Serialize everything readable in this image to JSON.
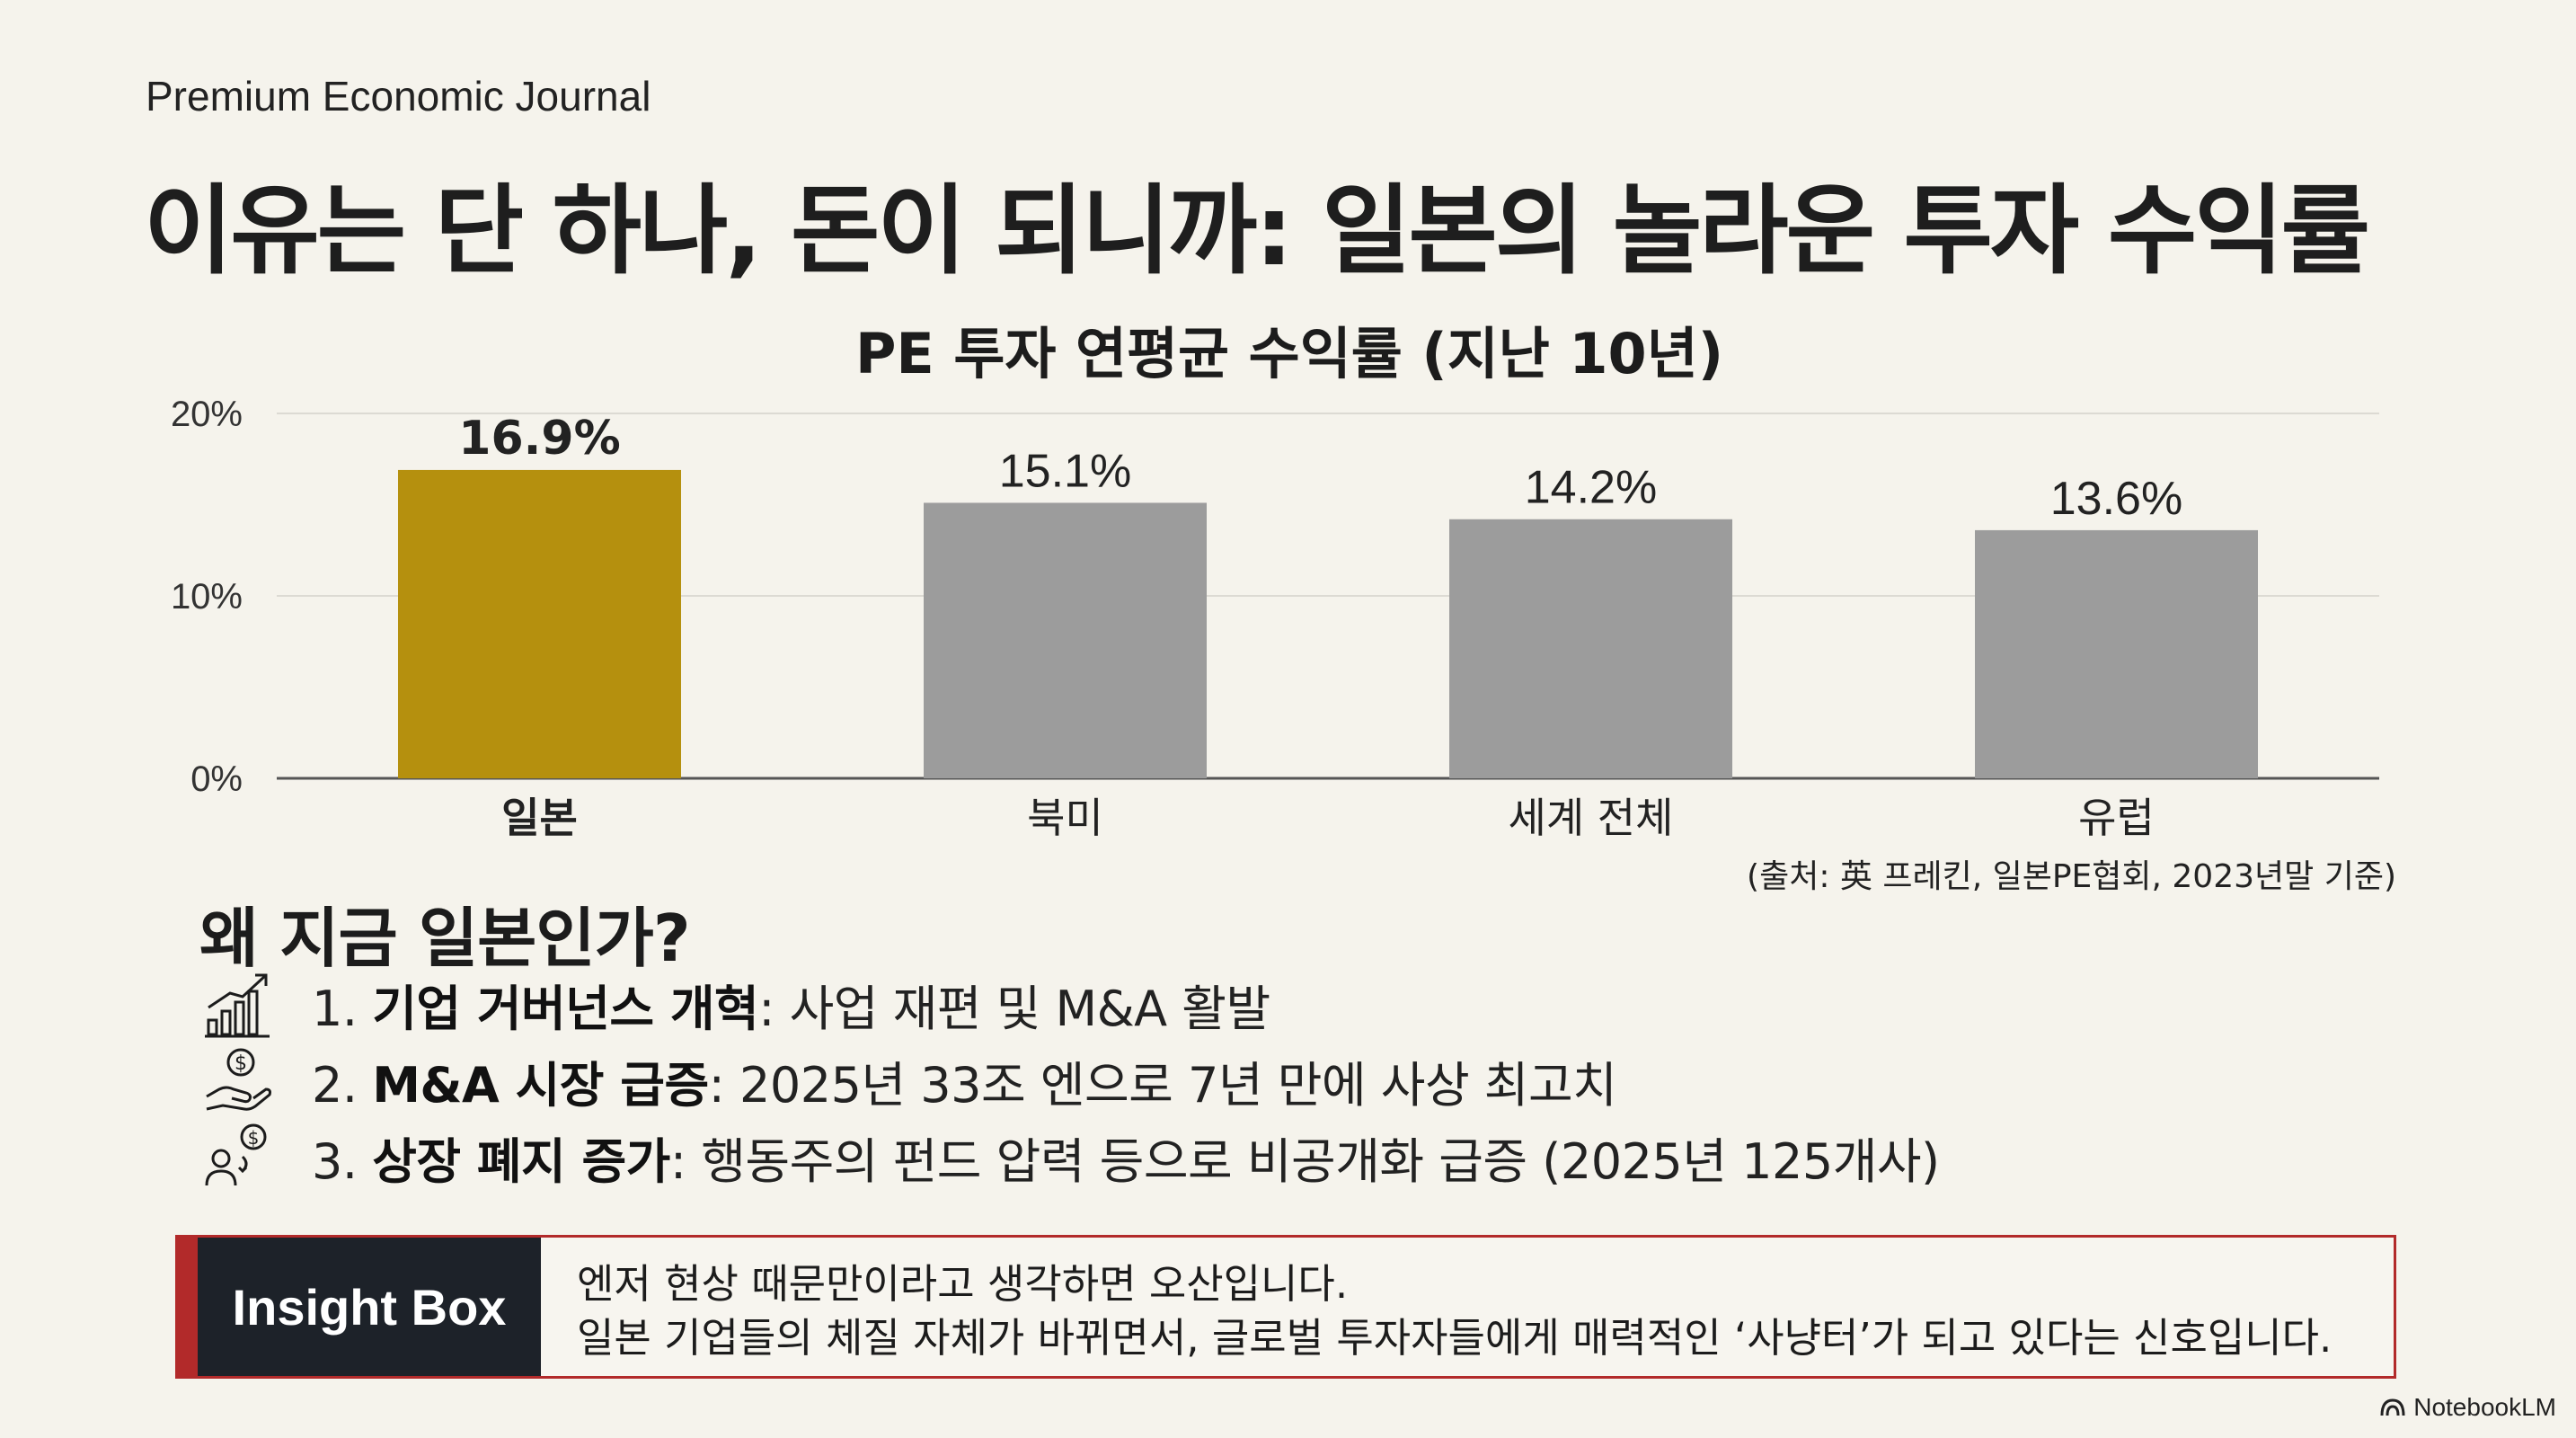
{
  "header": {
    "journal": "Premium Economic Journal",
    "headline": "이유는 단 하나, 돈이 되니까: 일본의 놀라운 투자 수익률"
  },
  "chart_data": {
    "type": "bar",
    "title": "PE 투자 연평균 수익률 (지난 10년)",
    "categories": [
      "일본",
      "북미",
      "세계 전체",
      "유럽"
    ],
    "values": [
      16.9,
      15.1,
      14.2,
      13.6
    ],
    "data_labels": [
      "16.9%",
      "15.1%",
      "14.2%",
      "13.6%"
    ],
    "highlight_index": 0,
    "colors": {
      "highlight": "#b5900e",
      "default": "#9c9c9c",
      "grid": "#dcdad3",
      "axis": "#555555"
    },
    "ylim": [
      0,
      20
    ],
    "yticks": [
      0,
      10,
      20
    ],
    "ytick_labels": [
      "0%",
      "10%",
      "20%"
    ],
    "grid": true,
    "xlabel": "",
    "ylabel": ""
  },
  "source_note": "(출처: 英 프레킨, 일본PE협회, 2023년말 기준)",
  "why": {
    "title": "왜 지금 일본인가?",
    "items": [
      {
        "icon": "rising-bar-chart-icon",
        "prefix": "1. ",
        "bold": "기업 거버넌스 개혁",
        "rest": ": 사업 재편 및 M&A 활발"
      },
      {
        "icon": "hand-coin-icon",
        "prefix": "2. ",
        "bold": "M&A 시장 급증",
        "rest": ": 2025년 33조 엔으로 7년 만에 사상 최고치"
      },
      {
        "icon": "person-coin-icon",
        "prefix": "3. ",
        "bold": "상장 폐지 증가",
        "rest": ": 행동주의 펀드 압력 등으로 비공개화 급증 (2025년 125개사)"
      }
    ]
  },
  "insight": {
    "label": "Insight Box",
    "lines": [
      "엔저 현상 때문만이라고 생각하면 오산입니다.",
      "일본 기업들의 체질 자체가 바뀌면서, 글로벌 투자자들에게 매력적인 ‘사냥터’가 되고 있다는 신호입니다."
    ]
  },
  "brand": {
    "icon": "notebooklm-logo-icon",
    "name": "NotebookLM"
  }
}
